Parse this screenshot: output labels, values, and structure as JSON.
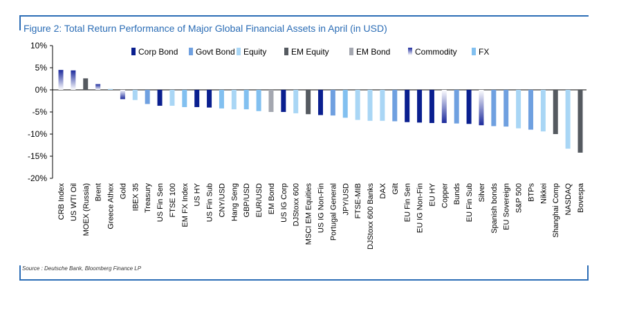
{
  "title": "Figure 2: Total Return Performance of Major Global Financial Assets in April (in USD)",
  "source": "Source : Deutsche Bank, Bloomberg Finance LP",
  "chart_data": {
    "type": "bar",
    "ylim": [
      -20,
      10
    ],
    "yticks": [
      10,
      5,
      0,
      -5,
      -10,
      -15,
      -20
    ],
    "ytick_labels": [
      "10%",
      "5%",
      "0%",
      "-5%",
      "-10%",
      "-15%",
      "-20%"
    ],
    "legend_position": "top",
    "legend": [
      {
        "name": "Corp Bond",
        "color": "#0a1f8f"
      },
      {
        "name": "Govt Bond",
        "color": "#6fa0e0"
      },
      {
        "name": "Equity",
        "color": "#a9d6f5"
      },
      {
        "name": "EM Equity",
        "color": "#555a60"
      },
      {
        "name": "EM Bond",
        "color": "#a4a7b0"
      },
      {
        "name": "Commodity",
        "color": "#1c2a9c"
      },
      {
        "name": "FX",
        "color": "#82c0f0"
      }
    ],
    "categories": [
      "CRB Index",
      "US WTI Oil",
      "MOEX (Russia)",
      "Brent",
      "Greece Athex",
      "Gold",
      "IBEX 35",
      "Treasury",
      "US Fin Sen",
      "FTSE 100",
      "EM FX Index",
      "US HY",
      "US Fin Sub",
      "CNY/USD",
      "Hang Seng",
      "GBP/USD",
      "EUR/USD",
      "EM Bond",
      "US IG Corp",
      "DJStoxx 600",
      "MSCI EM Equities",
      "US IG Non-Fin",
      "Portugal General",
      "JPY/USD",
      "FTSE-MIB",
      "DJStoxx 600 Banks",
      "DAX",
      "Gilt",
      "EU Fin Sen",
      "EU IG Non-Fin",
      "EU HY",
      "Copper",
      "Bunds",
      "EU Fin Sub",
      "Silver",
      "Spanish bonds",
      "EU Sovereign",
      "S&P 500",
      "BTPs",
      "Nikkei",
      "Shanghai Comp",
      "NASDAQ",
      "Bovespa"
    ],
    "values": [
      4.5,
      4.4,
      2.6,
      1.3,
      0.2,
      -2.1,
      -2.3,
      -3.2,
      -3.6,
      -3.6,
      -3.9,
      -3.9,
      -4.0,
      -4.2,
      -4.4,
      -4.4,
      -4.8,
      -5.0,
      -5.0,
      -5.3,
      -5.5,
      -5.7,
      -5.8,
      -6.3,
      -6.8,
      -7.0,
      -7.0,
      -7.1,
      -7.3,
      -7.4,
      -7.5,
      -7.5,
      -7.6,
      -7.7,
      -8.0,
      -8.2,
      -8.3,
      -8.7,
      -9.0,
      -9.4,
      -10.0,
      -13.3,
      -14.2
    ],
    "asset_class": [
      "Commodity",
      "Commodity",
      "EM Equity",
      "Commodity",
      "Equity",
      "Commodity",
      "Equity",
      "Govt Bond",
      "Corp Bond",
      "Equity",
      "FX",
      "Corp Bond",
      "Corp Bond",
      "FX",
      "Equity",
      "FX",
      "FX",
      "EM Bond",
      "Corp Bond",
      "Equity",
      "EM Equity",
      "Corp Bond",
      "Govt Bond",
      "FX",
      "Equity",
      "Equity",
      "Equity",
      "Govt Bond",
      "Corp Bond",
      "Corp Bond",
      "Corp Bond",
      "Commodity",
      "Govt Bond",
      "Corp Bond",
      "Commodity",
      "Govt Bond",
      "Govt Bond",
      "Equity",
      "Govt Bond",
      "Equity",
      "EM Equity",
      "Equity",
      "EM Equity"
    ]
  }
}
